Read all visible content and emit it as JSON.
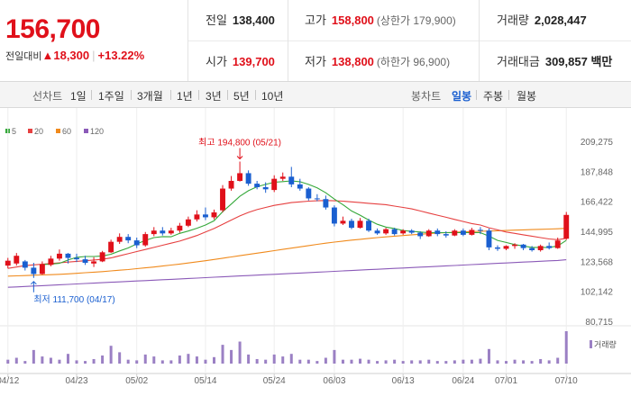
{
  "summary": {
    "current_price": "156,700",
    "change_label": "전일대비",
    "change_icon": "up-triangle-icon",
    "change_value": "18,300",
    "change_percent": "+13.22%"
  },
  "stats": {
    "prev_close": {
      "label": "전일",
      "value": "138,400"
    },
    "open": {
      "label": "시가",
      "value": "139,700"
    },
    "high": {
      "label": "고가",
      "value": "158,800",
      "sub": "(상한가 179,900)"
    },
    "low": {
      "label": "저가",
      "value": "138,800",
      "sub": "(하한가 96,900)"
    },
    "volume": {
      "label": "거래량",
      "value": "2,028,447"
    },
    "amount": {
      "label": "거래대금",
      "value": "309,857 백만"
    }
  },
  "toolbar": {
    "line_chart_label": "선차트",
    "line_periods": [
      "1일",
      "1주일",
      "3개월",
      "1년",
      "3년",
      "5년",
      "10년"
    ],
    "candle_chart_label": "봉차트",
    "candle_periods": [
      "일봉",
      "주봉",
      "월봉"
    ],
    "active_candle_period": "일봉"
  },
  "colors": {
    "up": "#e0101a",
    "down": "#1a5fd0",
    "ma5": "#35a83a",
    "ma20": "#e64040",
    "ma60": "#f08a1c",
    "ma120": "#8b5ab8",
    "volume": "#9b80c4"
  },
  "chart_data": {
    "type": "candlestick",
    "legend": [
      {
        "name": "5",
        "color": "#35a83a"
      },
      {
        "name": "20",
        "color": "#e64040"
      },
      {
        "name": "60",
        "color": "#f08a1c"
      },
      {
        "name": "120",
        "color": "#8b5ab8"
      }
    ],
    "volume_legend": "거래량",
    "y_ticks": [
      "209,275",
      "187,848",
      "166,422",
      "144,995",
      "123,568",
      "102,142",
      "80,715"
    ],
    "ylim": [
      80715,
      209275
    ],
    "x_ticks": [
      {
        "label": "04/12",
        "index": 0
      },
      {
        "label": "04/23",
        "index": 8
      },
      {
        "label": "05/02",
        "index": 15
      },
      {
        "label": "05/14",
        "index": 23
      },
      {
        "label": "05/24",
        "index": 31
      },
      {
        "label": "06/03",
        "index": 38
      },
      {
        "label": "06/13",
        "index": 46
      },
      {
        "label": "06/24",
        "index": 53
      },
      {
        "label": "07/01",
        "index": 58
      },
      {
        "label": "07/10",
        "index": 65
      }
    ],
    "high_annotation": {
      "text": "최고 194,800 (05/21)",
      "index": 27,
      "value": 194800
    },
    "low_annotation": {
      "text": "최저 111,700 (04/17)",
      "index": 3,
      "value": 111700
    },
    "candles": [
      {
        "o": 120500,
        "h": 126000,
        "c": 124000,
        "l": 118500
      },
      {
        "o": 122000,
        "h": 129500,
        "c": 127500,
        "l": 120500
      },
      {
        "o": 123500,
        "h": 124500,
        "c": 119000,
        "l": 117000
      },
      {
        "o": 119000,
        "h": 122500,
        "c": 114500,
        "l": 111700
      },
      {
        "o": 114500,
        "h": 123500,
        "c": 121500,
        "l": 114000
      },
      {
        "o": 121000,
        "h": 127500,
        "c": 125500,
        "l": 120000
      },
      {
        "o": 125500,
        "h": 132000,
        "c": 129000,
        "l": 124000
      },
      {
        "o": 129000,
        "h": 129500,
        "c": 126000,
        "l": 122000
      },
      {
        "o": 126000,
        "h": 129000,
        "c": 125000,
        "l": 123000
      },
      {
        "o": 125000,
        "h": 127500,
        "c": 122500,
        "l": 121000
      },
      {
        "o": 122000,
        "h": 126500,
        "c": 123500,
        "l": 119500
      },
      {
        "o": 123500,
        "h": 131000,
        "c": 130000,
        "l": 123000
      },
      {
        "o": 130000,
        "h": 139000,
        "c": 137500,
        "l": 129500
      },
      {
        "o": 137500,
        "h": 143500,
        "c": 141000,
        "l": 136000
      },
      {
        "o": 141000,
        "h": 143000,
        "c": 138500,
        "l": 136500
      },
      {
        "o": 138500,
        "h": 140500,
        "c": 135000,
        "l": 133000
      },
      {
        "o": 135000,
        "h": 144500,
        "c": 143000,
        "l": 134000
      },
      {
        "o": 143000,
        "h": 148000,
        "c": 145500,
        "l": 141500
      },
      {
        "o": 145500,
        "h": 148000,
        "c": 143500,
        "l": 142000
      },
      {
        "o": 143500,
        "h": 147500,
        "c": 145500,
        "l": 142500
      },
      {
        "o": 145500,
        "h": 151000,
        "c": 149000,
        "l": 144000
      },
      {
        "o": 149000,
        "h": 155500,
        "c": 153500,
        "l": 148000
      },
      {
        "o": 153500,
        "h": 160000,
        "c": 157000,
        "l": 152000
      },
      {
        "o": 157000,
        "h": 162000,
        "c": 155000,
        "l": 153000
      },
      {
        "o": 155000,
        "h": 160500,
        "c": 158500,
        "l": 153500
      },
      {
        "o": 160000,
        "h": 178000,
        "c": 175500,
        "l": 158500
      },
      {
        "o": 175500,
        "h": 184500,
        "c": 181000,
        "l": 174000
      },
      {
        "o": 181000,
        "h": 194800,
        "c": 186500,
        "l": 180500
      },
      {
        "o": 186500,
        "h": 188500,
        "c": 179000,
        "l": 177500
      },
      {
        "o": 179000,
        "h": 181000,
        "c": 176500,
        "l": 175000
      },
      {
        "o": 176500,
        "h": 180000,
        "c": 175000,
        "l": 172500
      },
      {
        "o": 174500,
        "h": 185000,
        "c": 182500,
        "l": 173000
      },
      {
        "o": 182500,
        "h": 187000,
        "c": 184000,
        "l": 181000
      },
      {
        "o": 184000,
        "h": 191000,
        "c": 178500,
        "l": 176500
      },
      {
        "o": 178500,
        "h": 182500,
        "c": 175500,
        "l": 174000
      },
      {
        "o": 175500,
        "h": 176500,
        "c": 168500,
        "l": 167000
      },
      {
        "o": 168500,
        "h": 171500,
        "c": 168000,
        "l": 166500
      },
      {
        "o": 168000,
        "h": 170500,
        "c": 162000,
        "l": 160500
      },
      {
        "o": 162000,
        "h": 163500,
        "c": 150500,
        "l": 148500
      },
      {
        "o": 150500,
        "h": 155500,
        "c": 152500,
        "l": 149500
      },
      {
        "o": 152500,
        "h": 154000,
        "c": 147500,
        "l": 146500
      },
      {
        "o": 147500,
        "h": 154500,
        "c": 152500,
        "l": 147000
      },
      {
        "o": 152500,
        "h": 154000,
        "c": 145500,
        "l": 144500
      },
      {
        "o": 145500,
        "h": 147000,
        "c": 143500,
        "l": 142500
      },
      {
        "o": 143500,
        "h": 147500,
        "c": 146500,
        "l": 142500
      },
      {
        "o": 146500,
        "h": 147500,
        "c": 143000,
        "l": 142000
      },
      {
        "o": 143500,
        "h": 146500,
        "c": 145500,
        "l": 142500
      },
      {
        "o": 145500,
        "h": 146500,
        "c": 144000,
        "l": 143000
      },
      {
        "o": 144000,
        "h": 145000,
        "c": 141500,
        "l": 139500
      },
      {
        "o": 141500,
        "h": 146500,
        "c": 145500,
        "l": 141000
      },
      {
        "o": 145500,
        "h": 147000,
        "c": 143000,
        "l": 141500
      },
      {
        "o": 143000,
        "h": 145000,
        "c": 142000,
        "l": 140500
      },
      {
        "o": 142000,
        "h": 146500,
        "c": 145500,
        "l": 141500
      },
      {
        "o": 145500,
        "h": 147000,
        "c": 142500,
        "l": 141500
      },
      {
        "o": 142500,
        "h": 147500,
        "c": 146000,
        "l": 142000
      },
      {
        "o": 146000,
        "h": 148000,
        "c": 145500,
        "l": 143000
      },
      {
        "o": 145500,
        "h": 147000,
        "c": 133500,
        "l": 131500
      },
      {
        "o": 133500,
        "h": 135000,
        "c": 132500,
        "l": 131000
      },
      {
        "o": 132500,
        "h": 135000,
        "c": 134500,
        "l": 131500
      },
      {
        "o": 134500,
        "h": 136500,
        "c": 135500,
        "l": 132500
      },
      {
        "o": 135500,
        "h": 136000,
        "c": 133000,
        "l": 131500
      },
      {
        "o": 133000,
        "h": 134500,
        "c": 131500,
        "l": 130500
      },
      {
        "o": 131500,
        "h": 135500,
        "c": 134500,
        "l": 130500
      },
      {
        "o": 134500,
        "h": 137000,
        "c": 133000,
        "l": 132000
      },
      {
        "o": 133000,
        "h": 140500,
        "c": 138400,
        "l": 132500
      },
      {
        "o": 139700,
        "h": 158800,
        "c": 156700,
        "l": 138800
      }
    ],
    "volumes": [
      0.12,
      0.18,
      0.08,
      0.42,
      0.22,
      0.18,
      0.12,
      0.3,
      0.1,
      0.08,
      0.14,
      0.25,
      0.55,
      0.35,
      0.12,
      0.1,
      0.28,
      0.22,
      0.1,
      0.1,
      0.25,
      0.3,
      0.22,
      0.12,
      0.2,
      0.58,
      0.42,
      0.68,
      0.28,
      0.14,
      0.12,
      0.28,
      0.22,
      0.3,
      0.12,
      0.12,
      0.08,
      0.18,
      0.42,
      0.12,
      0.12,
      0.15,
      0.12,
      0.08,
      0.1,
      0.12,
      0.08,
      0.1,
      0.1,
      0.12,
      0.08,
      0.08,
      0.1,
      0.12,
      0.12,
      0.15,
      0.45,
      0.1,
      0.08,
      0.12,
      0.1,
      0.08,
      0.14,
      0.1,
      0.18,
      1.0
    ],
    "ma5": [
      null,
      null,
      null,
      null,
      121300,
      121600,
      122100,
      124500,
      126400,
      127000,
      127000,
      127400,
      128600,
      131000,
      133100,
      136000,
      138500,
      140500,
      141200,
      141100,
      143500,
      145200,
      147200,
      149500,
      152500,
      159000,
      164500,
      170000,
      174000,
      176800,
      178500,
      180000,
      180500,
      181000,
      180400,
      178500,
      176000,
      172500,
      168000,
      164000,
      159500,
      156500,
      153000,
      150000,
      148000,
      147000,
      145500,
      145000,
      144500,
      144000,
      144000,
      144000,
      144000,
      144000,
      144000,
      144000,
      141500,
      138500,
      137000,
      135500,
      134500,
      133500,
      133500,
      133500,
      134500,
      138500
    ],
    "ma20": [
      118500,
      119500,
      120500,
      121000,
      121500,
      122000,
      122500,
      123000,
      123500,
      124000,
      124500,
      125000,
      126000,
      127500,
      129000,
      130500,
      132000,
      133500,
      135000,
      136500,
      138000,
      140000,
      142000,
      144500,
      147000,
      150000,
      153000,
      156000,
      158500,
      160500,
      162000,
      163500,
      164500,
      165500,
      166000,
      166500,
      166800,
      167000,
      166800,
      166500,
      166000,
      165500,
      165000,
      164500,
      164000,
      163000,
      162000,
      161000,
      159500,
      158000,
      156500,
      155000,
      153500,
      152000,
      150500,
      149500,
      147500,
      146000,
      144500,
      143500,
      142500,
      141500,
      140500,
      139500,
      139000,
      140000
    ],
    "ma60": [
      113000,
      113200,
      113400,
      113600,
      113800,
      114000,
      114300,
      114600,
      115000,
      115400,
      115800,
      116200,
      116700,
      117200,
      117700,
      118300,
      118900,
      119500,
      120200,
      120900,
      121600,
      122400,
      123200,
      124000,
      124900,
      125800,
      126700,
      127600,
      128500,
      129400,
      130300,
      131200,
      132100,
      133000,
      133900,
      134800,
      135700,
      136500,
      137300,
      138000,
      138700,
      139300,
      139900,
      140500,
      141000,
      141500,
      142000,
      142500,
      142900,
      143300,
      143700,
      144000,
      144300,
      144600,
      144800,
      145000,
      145200,
      145400,
      145600,
      145800,
      146000,
      146200,
      146400,
      146600,
      146800,
      147100
    ],
    "ma120": [
      105000,
      105300,
      105600,
      105900,
      106200,
      106500,
      106800,
      107100,
      107400,
      107700,
      108000,
      108300,
      108600,
      108900,
      109200,
      109500,
      109800,
      110100,
      110400,
      110700,
      111000,
      111300,
      111600,
      111900,
      112200,
      112500,
      112800,
      113100,
      113400,
      113700,
      114000,
      114300,
      114600,
      114900,
      115200,
      115500,
      115800,
      116100,
      116400,
      116700,
      117000,
      117300,
      117600,
      117900,
      118200,
      118500,
      118800,
      119100,
      119400,
      119700,
      120000,
      120300,
      120600,
      120900,
      121200,
      121500,
      121800,
      122100,
      122400,
      122700,
      123000,
      123300,
      123600,
      123900,
      124200,
      124700
    ]
  }
}
